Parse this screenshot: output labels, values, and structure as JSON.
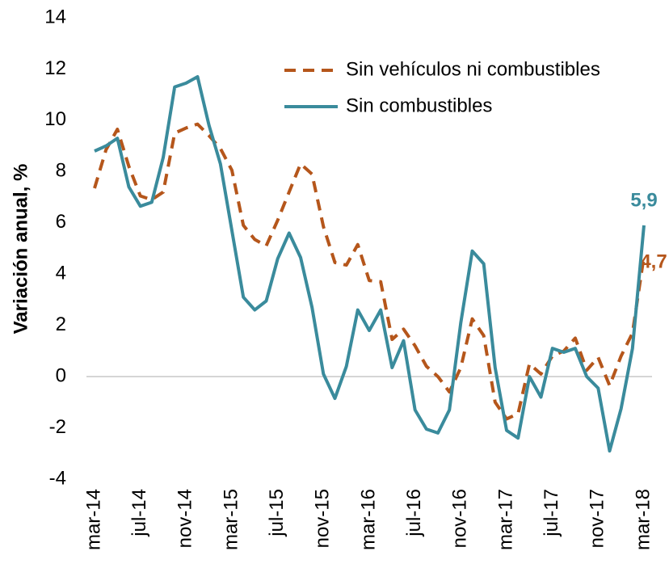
{
  "chart_data": {
    "type": "line",
    "y_label": "Variación anual, %",
    "categories": [
      "mar-14",
      null,
      null,
      null,
      "jul-14",
      null,
      null,
      null,
      "nov-14",
      null,
      null,
      null,
      "mar-15",
      null,
      null,
      null,
      "jul-15",
      null,
      null,
      null,
      "nov-15",
      null,
      null,
      null,
      "mar-16",
      null,
      null,
      null,
      "jul-16",
      null,
      null,
      null,
      "nov-16",
      null,
      null,
      null,
      "mar-17",
      null,
      null,
      null,
      "jul-17",
      null,
      null,
      null,
      "nov-17",
      null,
      null,
      null,
      "mar-18"
    ],
    "series": [
      {
        "name": "Sin vehículos ni combustibles",
        "color": "#b5561b",
        "dashed": true,
        "values": [
          7.35,
          8.85,
          9.65,
          8.2,
          7.05,
          6.9,
          7.2,
          9.5,
          9.7,
          9.85,
          9.4,
          8.9,
          8.05,
          5.9,
          5.35,
          5.1,
          6.1,
          7.2,
          8.3,
          7.9,
          5.85,
          4.45,
          4.35,
          5.15,
          3.75,
          3.7,
          1.45,
          1.85,
          1.2,
          0.4,
          0,
          -0.6,
          0.35,
          2.25,
          1.6,
          -1,
          -1.65,
          -1.45,
          0.5,
          0.1,
          0.8,
          1.0,
          1.5,
          0.25,
          0.75,
          -0.35,
          0.8,
          1.7,
          4.7
        ],
        "value_labels": [
          null,
          null,
          null,
          null,
          null,
          null,
          null,
          null,
          null,
          null,
          null,
          null,
          null,
          null,
          null,
          null,
          null,
          null,
          null,
          null,
          null,
          null,
          null,
          null,
          null,
          null,
          null,
          null,
          null,
          null,
          null,
          null,
          null,
          null,
          null,
          null,
          null,
          null,
          null,
          null,
          null,
          null,
          null,
          null,
          null,
          null,
          null,
          null,
          "4,7"
        ]
      },
      {
        "name": "Sin combustibles",
        "color": "#3a8b9c",
        "dashed": false,
        "values": [
          8.8,
          9.0,
          9.3,
          7.4,
          6.65,
          6.8,
          8.55,
          11.3,
          11.45,
          11.7,
          9.8,
          8.3,
          5.7,
          3.1,
          2.6,
          2.95,
          4.6,
          5.6,
          4.65,
          2.7,
          0.1,
          -0.85,
          0.4,
          2.6,
          1.8,
          2.6,
          0.35,
          1.4,
          -1.3,
          -2.05,
          -2.2,
          -1.3,
          2.1,
          4.9,
          4.4,
          0.35,
          -2.1,
          -2.4,
          0,
          -0.8,
          1.1,
          0.95,
          1.1,
          0,
          -0.45,
          -2.9,
          -1.25,
          1.1,
          5.9
        ],
        "value_labels": [
          null,
          null,
          null,
          null,
          null,
          null,
          null,
          null,
          null,
          null,
          null,
          null,
          null,
          null,
          null,
          null,
          null,
          null,
          null,
          null,
          null,
          null,
          null,
          null,
          null,
          null,
          null,
          null,
          null,
          null,
          null,
          null,
          null,
          null,
          null,
          null,
          null,
          null,
          null,
          null,
          null,
          null,
          null,
          null,
          null,
          null,
          null,
          null,
          "5,9"
        ]
      }
    ],
    "ylim": [
      -4,
      14
    ],
    "yticks": [
      -4,
      -2,
      0,
      2,
      4,
      6,
      8,
      10,
      12,
      14
    ],
    "zero_line": true,
    "legend": "top-right"
  }
}
